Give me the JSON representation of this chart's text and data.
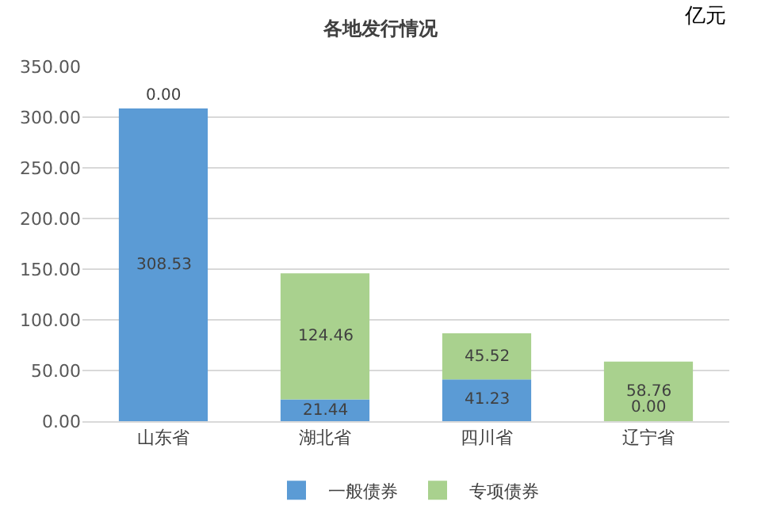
{
  "chart_data": {
    "type": "bar",
    "title": "各地发行情况",
    "stacked": true,
    "categories": [
      "山东省",
      "湖北省",
      "四川省",
      "辽宁省"
    ],
    "series": [
      {
        "name": "一般债券",
        "color": "#5b9bd5",
        "values": [
          308.53,
          21.44,
          41.23,
          0.0
        ],
        "value_labels": [
          "308.53",
          "21.44",
          "41.23",
          "0.00"
        ]
      },
      {
        "name": "专项债券",
        "color": "#a9d18e",
        "values": [
          0.0,
          124.46,
          45.52,
          58.76
        ],
        "value_labels": [
          "0.00",
          "124.46",
          "45.52",
          "58.76"
        ]
      }
    ],
    "ylim": [
      0,
      350
    ],
    "yticks": [
      {
        "value": 0,
        "label": "0.00"
      },
      {
        "value": 50,
        "label": "50.00"
      },
      {
        "value": 100,
        "label": "100.00"
      },
      {
        "value": 150,
        "label": "150.00"
      },
      {
        "value": 200,
        "label": "200.00"
      },
      {
        "value": 250,
        "label": "250.00"
      },
      {
        "value": 300,
        "label": "300.00"
      },
      {
        "value": 350,
        "label": "350.00"
      }
    ],
    "grid": "y",
    "legend": "bottom",
    "annotations": [
      "亿元"
    ]
  }
}
